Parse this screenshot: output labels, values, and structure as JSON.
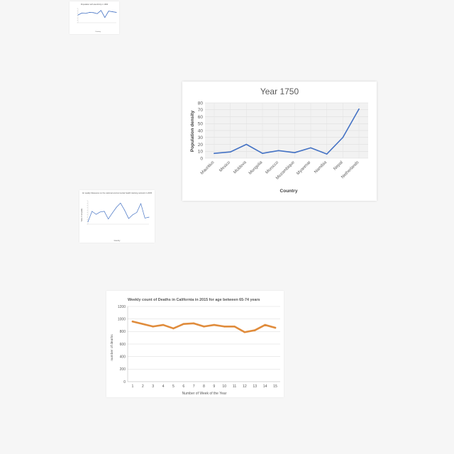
{
  "chart_data": [
    {
      "type": "line",
      "title": "Population with electricity in 1990",
      "xlabel": "Country",
      "ylabel": "",
      "categories": [
        "C1",
        "C2",
        "C3",
        "C4",
        "C5",
        "C6",
        "C7",
        "C8",
        "C9",
        "C10",
        "C11"
      ],
      "values": [
        60,
        75,
        72,
        80,
        78,
        70,
        95,
        40,
        90,
        85,
        80
      ],
      "ylim": [
        0,
        110
      ],
      "color": "#4472c4"
    },
    {
      "type": "line",
      "title": "Year 1750",
      "xlabel": "Country",
      "ylabel": "Population density",
      "categories": [
        "Mauritius",
        "Mexico",
        "Moldova",
        "Mongolia",
        "Morocco",
        "Mozambique",
        "Myanmar",
        "Namibia",
        "Nepal",
        "Netherlands"
      ],
      "values": [
        7,
        9,
        20,
        7,
        11,
        8,
        15,
        6,
        30,
        71
      ],
      "ylim": [
        0,
        80
      ],
      "yticks": [
        0,
        10,
        20,
        30,
        40,
        50,
        60,
        70,
        80
      ],
      "color": "#4472c4"
    },
    {
      "type": "line",
      "title": "Air quality Measures on the national environmental health tracking network in 2005",
      "xlabel": "Country",
      "ylabel": "Value of air quality",
      "categories": [
        "C1",
        "C2",
        "C3",
        "C4",
        "C5",
        "C6",
        "C7",
        "C8",
        "C9",
        "C10",
        "C11",
        "C12",
        "C13",
        "C14",
        "C15",
        "C16"
      ],
      "values": [
        10,
        55,
        42,
        52,
        55,
        22,
        48,
        72,
        90,
        60,
        24,
        40,
        50,
        88,
        26,
        30
      ],
      "ylim": [
        0,
        100
      ],
      "color": "#4472c4"
    },
    {
      "type": "line",
      "title": "Weekly count of Deaths in California in 2015 for age between 65-74 years",
      "xlabel": "Number of Week of the Year",
      "ylabel": "number of deaths",
      "categories": [
        "1",
        "2",
        "3",
        "4",
        "5",
        "6",
        "7",
        "8",
        "9",
        "10",
        "11",
        "12",
        "13",
        "14",
        "15"
      ],
      "values": [
        960,
        920,
        880,
        905,
        850,
        920,
        930,
        880,
        905,
        880,
        880,
        790,
        820,
        905,
        860
      ],
      "ylim": [
        0,
        1200
      ],
      "yticks": [
        0,
        200,
        400,
        600,
        800,
        1000,
        1200
      ],
      "color": "#e08c3c"
    }
  ]
}
